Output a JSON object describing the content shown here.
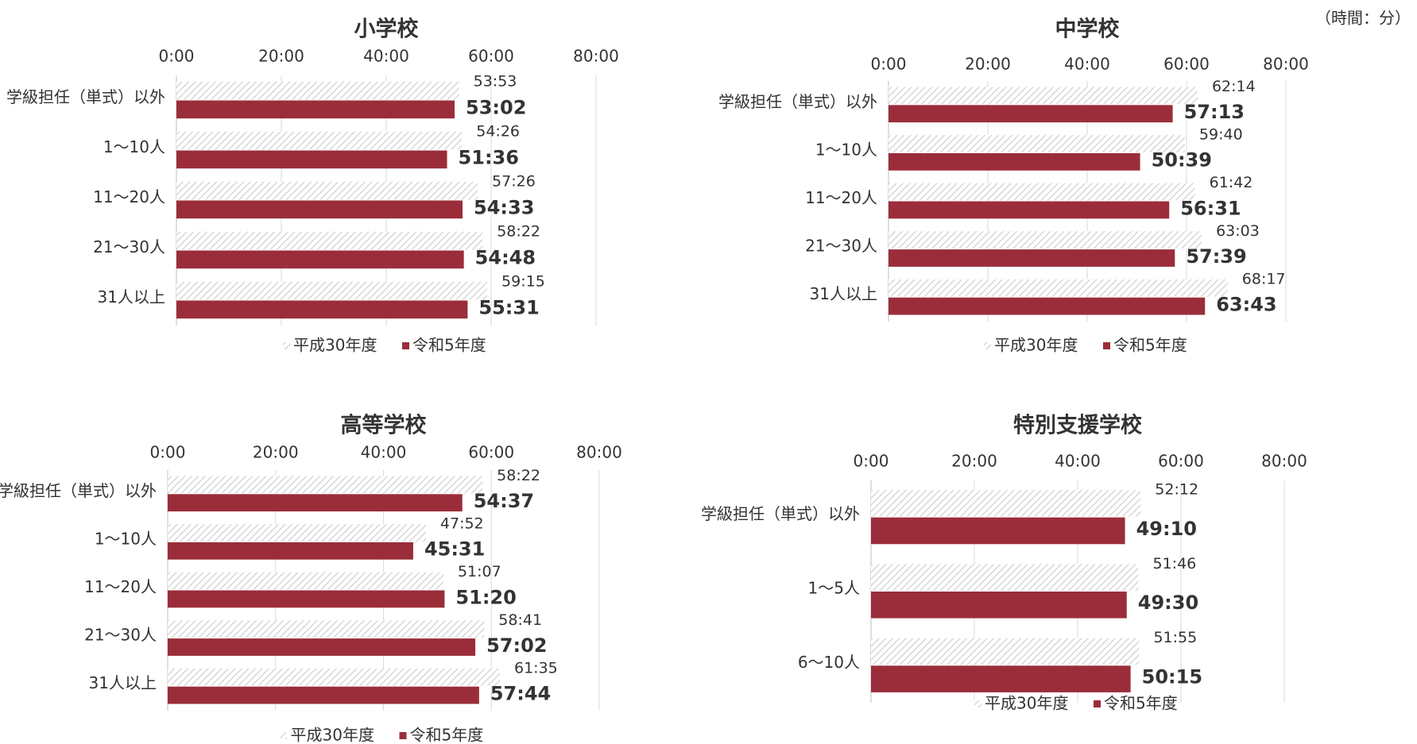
{
  "note": "（時間：分）",
  "chart_data": [
    {
      "type": "barh",
      "title": "小学校",
      "categories": [
        "学級担任（単式）以外",
        "1～10人",
        "11～20人",
        "21～30人",
        "31人以上"
      ],
      "series": [
        {
          "name": "平成30年度",
          "color": "#d0d0d0",
          "values": [
            53.883,
            54.433,
            57.433,
            58.367,
            59.25
          ],
          "value_labels": [
            "53:53",
            "54:26",
            "57:26",
            "58:22",
            "59:15"
          ]
        },
        {
          "name": "令和5年度",
          "color": "#9b2d3a",
          "values": [
            53.033,
            51.6,
            54.55,
            54.8,
            55.517
          ],
          "value_labels": [
            "53:02",
            "51:36",
            "54:33",
            "54:48",
            "55:31"
          ]
        }
      ],
      "xlim": [
        0,
        80
      ],
      "xticks": [
        {
          "value": 0,
          "label": "0:00"
        },
        {
          "value": 20,
          "label": "20:00"
        },
        {
          "value": 40,
          "label": "40:00"
        },
        {
          "value": 60,
          "label": "60:00"
        },
        {
          "value": 80,
          "label": "80:00"
        }
      ],
      "grid": true,
      "legend": "bottom"
    },
    {
      "type": "barh",
      "title": "中学校",
      "categories": [
        "学級担任（単式）以外",
        "1～10人",
        "11～20人",
        "21～30人",
        "31人以上"
      ],
      "series": [
        {
          "name": "平成30年度",
          "color": "#d0d0d0",
          "values": [
            62.233,
            59.667,
            61.7,
            63.05,
            68.283
          ],
          "value_labels": [
            "62:14",
            "59:40",
            "61:42",
            "63:03",
            "68:17"
          ]
        },
        {
          "name": "令和5年度",
          "color": "#9b2d3a",
          "values": [
            57.217,
            50.65,
            56.517,
            57.65,
            63.717
          ],
          "value_labels": [
            "57:13",
            "50:39",
            "56:31",
            "57:39",
            "63:43"
          ]
        }
      ],
      "xlim": [
        0,
        80
      ],
      "xticks": [
        {
          "value": 0,
          "label": "0:00"
        },
        {
          "value": 20,
          "label": "20:00"
        },
        {
          "value": 40,
          "label": "40:00"
        },
        {
          "value": 60,
          "label": "60:00"
        },
        {
          "value": 80,
          "label": "80:00"
        }
      ],
      "grid": true,
      "legend": "bottom"
    },
    {
      "type": "barh",
      "title": "高等学校",
      "categories": [
        "学級担任（単式）以外",
        "1～10人",
        "11～20人",
        "21～30人",
        "31人以上"
      ],
      "series": [
        {
          "name": "平成30年度",
          "color": "#d0d0d0",
          "values": [
            58.367,
            47.867,
            51.117,
            58.683,
            61.583
          ],
          "value_labels": [
            "58:22",
            "47:52",
            "51:07",
            "58:41",
            "61:35"
          ]
        },
        {
          "name": "令和5年度",
          "color": "#9b2d3a",
          "values": [
            54.617,
            45.517,
            51.333,
            57.033,
            57.733
          ],
          "value_labels": [
            "54:37",
            "45:31",
            "51:20",
            "57:02",
            "57:44"
          ]
        }
      ],
      "xlim": [
        0,
        80
      ],
      "xticks": [
        {
          "value": 0,
          "label": "0:00"
        },
        {
          "value": 20,
          "label": "20:00"
        },
        {
          "value": 40,
          "label": "40:00"
        },
        {
          "value": 60,
          "label": "60:00"
        },
        {
          "value": 80,
          "label": "80:00"
        }
      ],
      "grid": true,
      "legend": "bottom"
    },
    {
      "type": "barh",
      "title": "特別支援学校",
      "categories": [
        "学級担任（単式）以外",
        "1～5人",
        "6～10人"
      ],
      "series": [
        {
          "name": "平成30年度",
          "color": "#d0d0d0",
          "values": [
            52.2,
            51.767,
            51.917
          ],
          "value_labels": [
            "52:12",
            "51:46",
            "51:55"
          ]
        },
        {
          "name": "令和5年度",
          "color": "#9b2d3a",
          "values": [
            49.167,
            49.5,
            50.25
          ],
          "value_labels": [
            "49:10",
            "49:30",
            "50:15"
          ]
        }
      ],
      "xlim": [
        0,
        80
      ],
      "xticks": [
        {
          "value": 0,
          "label": "0:00"
        },
        {
          "value": 20,
          "label": "20:00"
        },
        {
          "value": 40,
          "label": "40:00"
        },
        {
          "value": 60,
          "label": "60:00"
        },
        {
          "value": 80,
          "label": "80:00"
        }
      ],
      "grid": true,
      "legend": "bottom"
    }
  ]
}
